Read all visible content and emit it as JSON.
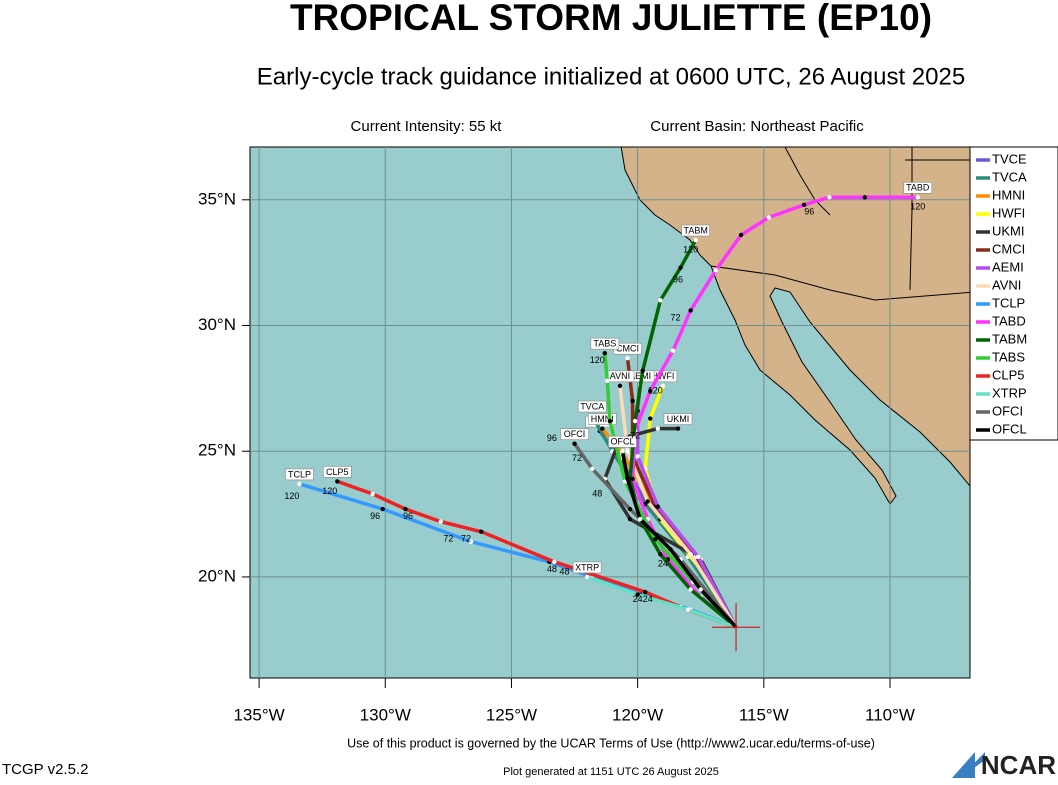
{
  "chart_data": {
    "type": "track-map",
    "title": "TROPICAL STORM JULIETTE (EP10)",
    "subtitle": "Early-cycle track guidance initialized at 0600 UTC, 26 August 2025",
    "intensity": "Current Intensity: 55 kt",
    "basin": "Current Basin: Northeast Pacific",
    "xlim": [
      -135.36,
      -106.83
    ],
    "ylim": [
      15.98,
      37.1
    ],
    "xticks": [
      {
        "value": -135,
        "label": "135°W"
      },
      {
        "value": -130,
        "label": "130°W"
      },
      {
        "value": -125,
        "label": "125°W"
      },
      {
        "value": -120,
        "label": "120°W"
      },
      {
        "value": -115,
        "label": "115°W"
      },
      {
        "value": -110,
        "label": "110°W"
      }
    ],
    "yticks": [
      {
        "value": 20,
        "label": "20°N"
      },
      {
        "value": 25,
        "label": "25°N"
      },
      {
        "value": 30,
        "label": "30°N"
      },
      {
        "value": 35,
        "label": "35°N"
      }
    ],
    "grid": true,
    "current_position": [
      -116.1,
      18.0
    ],
    "series": [
      {
        "name": "TVCE",
        "color": "#6a5acd",
        "lon": [
          -116.1,
          -117.9,
          -119.5,
          -120.7,
          -121.5
        ],
        "lat": [
          18.0,
          20.7,
          22.7,
          24.7,
          25.8
        ]
      },
      {
        "name": "TVCA",
        "color": "#2e8b7a",
        "lon": [
          -116.1,
          -118.0,
          -119.7,
          -121.0,
          -121.8
        ],
        "lat": [
          18.0,
          20.8,
          22.9,
          25.0,
          26.4
        ]
      },
      {
        "name": "HMNI",
        "color": "#ff8c00",
        "lon": [
          -116.1,
          -117.8,
          -119.4,
          -120.6,
          -121.4
        ],
        "lat": [
          18.0,
          20.9,
          22.9,
          24.9,
          25.9
        ]
      },
      {
        "name": "HWFI",
        "color": "#ffff00",
        "lon": [
          -116.1,
          -117.5,
          -119.1,
          -119.7,
          -119.5,
          -119.0
        ],
        "lat": [
          18.0,
          20.3,
          22.3,
          24.3,
          26.3,
          27.6
        ]
      },
      {
        "name": "UKMI",
        "color": "#333333",
        "lon": [
          -116.1,
          -117.5,
          -120.3,
          -121.3,
          -120.7,
          -119.2,
          -118.4
        ],
        "lat": [
          18.0,
          20.7,
          22.3,
          23.9,
          25.5,
          25.9,
          25.9
        ]
      },
      {
        "name": "CMCI",
        "color": "#8b2a1a",
        "lon": [
          -116.1,
          -117.7,
          -119.3,
          -120.2,
          -120.2,
          -120.4
        ],
        "lat": [
          18.0,
          20.8,
          22.8,
          24.8,
          27.0,
          28.7
        ]
      },
      {
        "name": "AEMI",
        "color": "#b44ef0",
        "lon": [
          -116.1,
          -117.6,
          -119.2,
          -120.0,
          -120.0,
          -119.9
        ],
        "lat": [
          18.0,
          20.8,
          22.8,
          24.8,
          26.6,
          27.6
        ]
      },
      {
        "name": "AVNI",
        "color": "#ffdab9",
        "lon": [
          -116.1,
          -117.9,
          -119.6,
          -120.4,
          -120.7
        ],
        "lat": [
          18.0,
          20.9,
          23.0,
          25.0,
          27.6
        ]
      },
      {
        "name": "TCLP",
        "color": "#3399ff",
        "lon": [
          -116.1,
          -117.9,
          -119.9,
          -121.8,
          -123.5,
          -126.6,
          -130.1,
          -133.4
        ],
        "lat": [
          18.0,
          18.7,
          19.3,
          20.0,
          20.6,
          21.4,
          22.7,
          23.7
        ]
      },
      {
        "name": "TABD",
        "color": "#ff33ff",
        "lon": [
          -116.1,
          -117.5,
          -118.8,
          -119.6,
          -120.2,
          -120.1,
          -119.5,
          -118.6,
          -117.9,
          -116.9,
          -115.9,
          -114.8,
          -113.4,
          -112.4,
          -111.0,
          -108.9
        ],
        "lat": [
          18.0,
          19.2,
          20.7,
          22.3,
          23.9,
          25.8,
          27.4,
          29.0,
          30.6,
          32.2,
          33.6,
          34.3,
          34.8,
          35.1,
          35.1,
          35.1
        ]
      },
      {
        "name": "TABM",
        "color": "#006400",
        "lon": [
          -116.1,
          -117.9,
          -119.1,
          -119.9,
          -120.3,
          -120.1,
          -119.8,
          -119.1,
          -118.3,
          -117.7
        ],
        "lat": [
          18.0,
          19.5,
          20.9,
          22.3,
          23.9,
          26.2,
          28.2,
          31.0,
          32.3,
          33.4
        ]
      },
      {
        "name": "TABS",
        "color": "#33cc33",
        "lon": [
          -116.1,
          -117.8,
          -119.3,
          -120.5,
          -121.1,
          -121.2,
          -121.3
        ],
        "lat": [
          18.0,
          19.8,
          21.5,
          23.8,
          26.2,
          27.8,
          28.9
        ]
      },
      {
        "name": "CLP5",
        "color": "#ee2222",
        "lon": [
          -116.1,
          -118.3,
          -119.7,
          -123.3,
          -126.2,
          -127.8,
          -129.2,
          -130.5,
          -131.9
        ],
        "lat": [
          18.0,
          18.8,
          19.4,
          20.6,
          21.8,
          22.2,
          22.7,
          23.3,
          23.8
        ]
      },
      {
        "name": "XTRP",
        "color": "#66e0c0",
        "lon": [
          -116.1,
          -118.0,
          -120.0,
          -122.0
        ],
        "lat": [
          18.0,
          18.7,
          19.3,
          20.0
        ]
      },
      {
        "name": "OFCI",
        "color": "#666666",
        "lon": [
          -116.1,
          -118.3,
          -120.3,
          -121.8,
          -122.5
        ],
        "lat": [
          18.0,
          20.7,
          22.7,
          24.3,
          25.3
        ]
      },
      {
        "name": "OFCL",
        "color": "#000000",
        "lon": [
          -116.1,
          -117.5,
          -118.7,
          -119.9,
          -120.4,
          -120.6
        ],
        "lat": [
          18.0,
          19.5,
          21.1,
          22.3,
          23.9,
          25.0
        ]
      }
    ],
    "hour_labels": [
      {
        "text": 120,
        "lon": -133.7,
        "lat": 23.2
      },
      {
        "text": 96,
        "lon": -130.4,
        "lat": 22.4
      },
      {
        "text": 72,
        "lon": -127.5,
        "lat": 21.5
      },
      {
        "text": 48,
        "lon": -123.4,
        "lat": 20.3
      },
      {
        "text": 120,
        "lon": -132.2,
        "lat": 23.4
      },
      {
        "text": 96,
        "lon": -129.1,
        "lat": 22.4
      },
      {
        "text": 72,
        "lon": -126.8,
        "lat": 21.5
      },
      {
        "text": 48,
        "lon": -122.9,
        "lat": 20.2
      },
      {
        "text": 24,
        "lon": -120.0,
        "lat": 19.1
      },
      {
        "text": 24,
        "lon": -119.6,
        "lat": 19.1
      },
      {
        "text": 120,
        "lon": -108.9,
        "lat": 34.7
      },
      {
        "text": 96,
        "lon": -113.2,
        "lat": 34.5
      },
      {
        "text": 72,
        "lon": -118.5,
        "lat": 30.3
      },
      {
        "text": 120,
        "lon": -117.9,
        "lat": 33.0
      },
      {
        "text": 96,
        "lon": -118.4,
        "lat": 31.8
      },
      {
        "text": 120,
        "lon": -121.6,
        "lat": 28.6
      },
      {
        "text": 96,
        "lon": -123.4,
        "lat": 25.5
      },
      {
        "text": 72,
        "lon": -122.4,
        "lat": 24.7
      },
      {
        "text": 48,
        "lon": -121.6,
        "lat": 23.3
      },
      {
        "text": 24,
        "lon": -119.0,
        "lat": 20.5
      },
      {
        "text": 120,
        "lon": -119.3,
        "lat": 27.4
      },
      {
        "text": 72,
        "lon": -120.1,
        "lat": 25.6
      }
    ],
    "terms": "Use of this product is governed by the UCAR Terms of Use (http://www2.ucar.edu/terms-of-use)",
    "version": "TCGP v2.5.2",
    "generated": "Plot generated at 1151 UTC   26 August 2025",
    "logo": "NCAR"
  }
}
